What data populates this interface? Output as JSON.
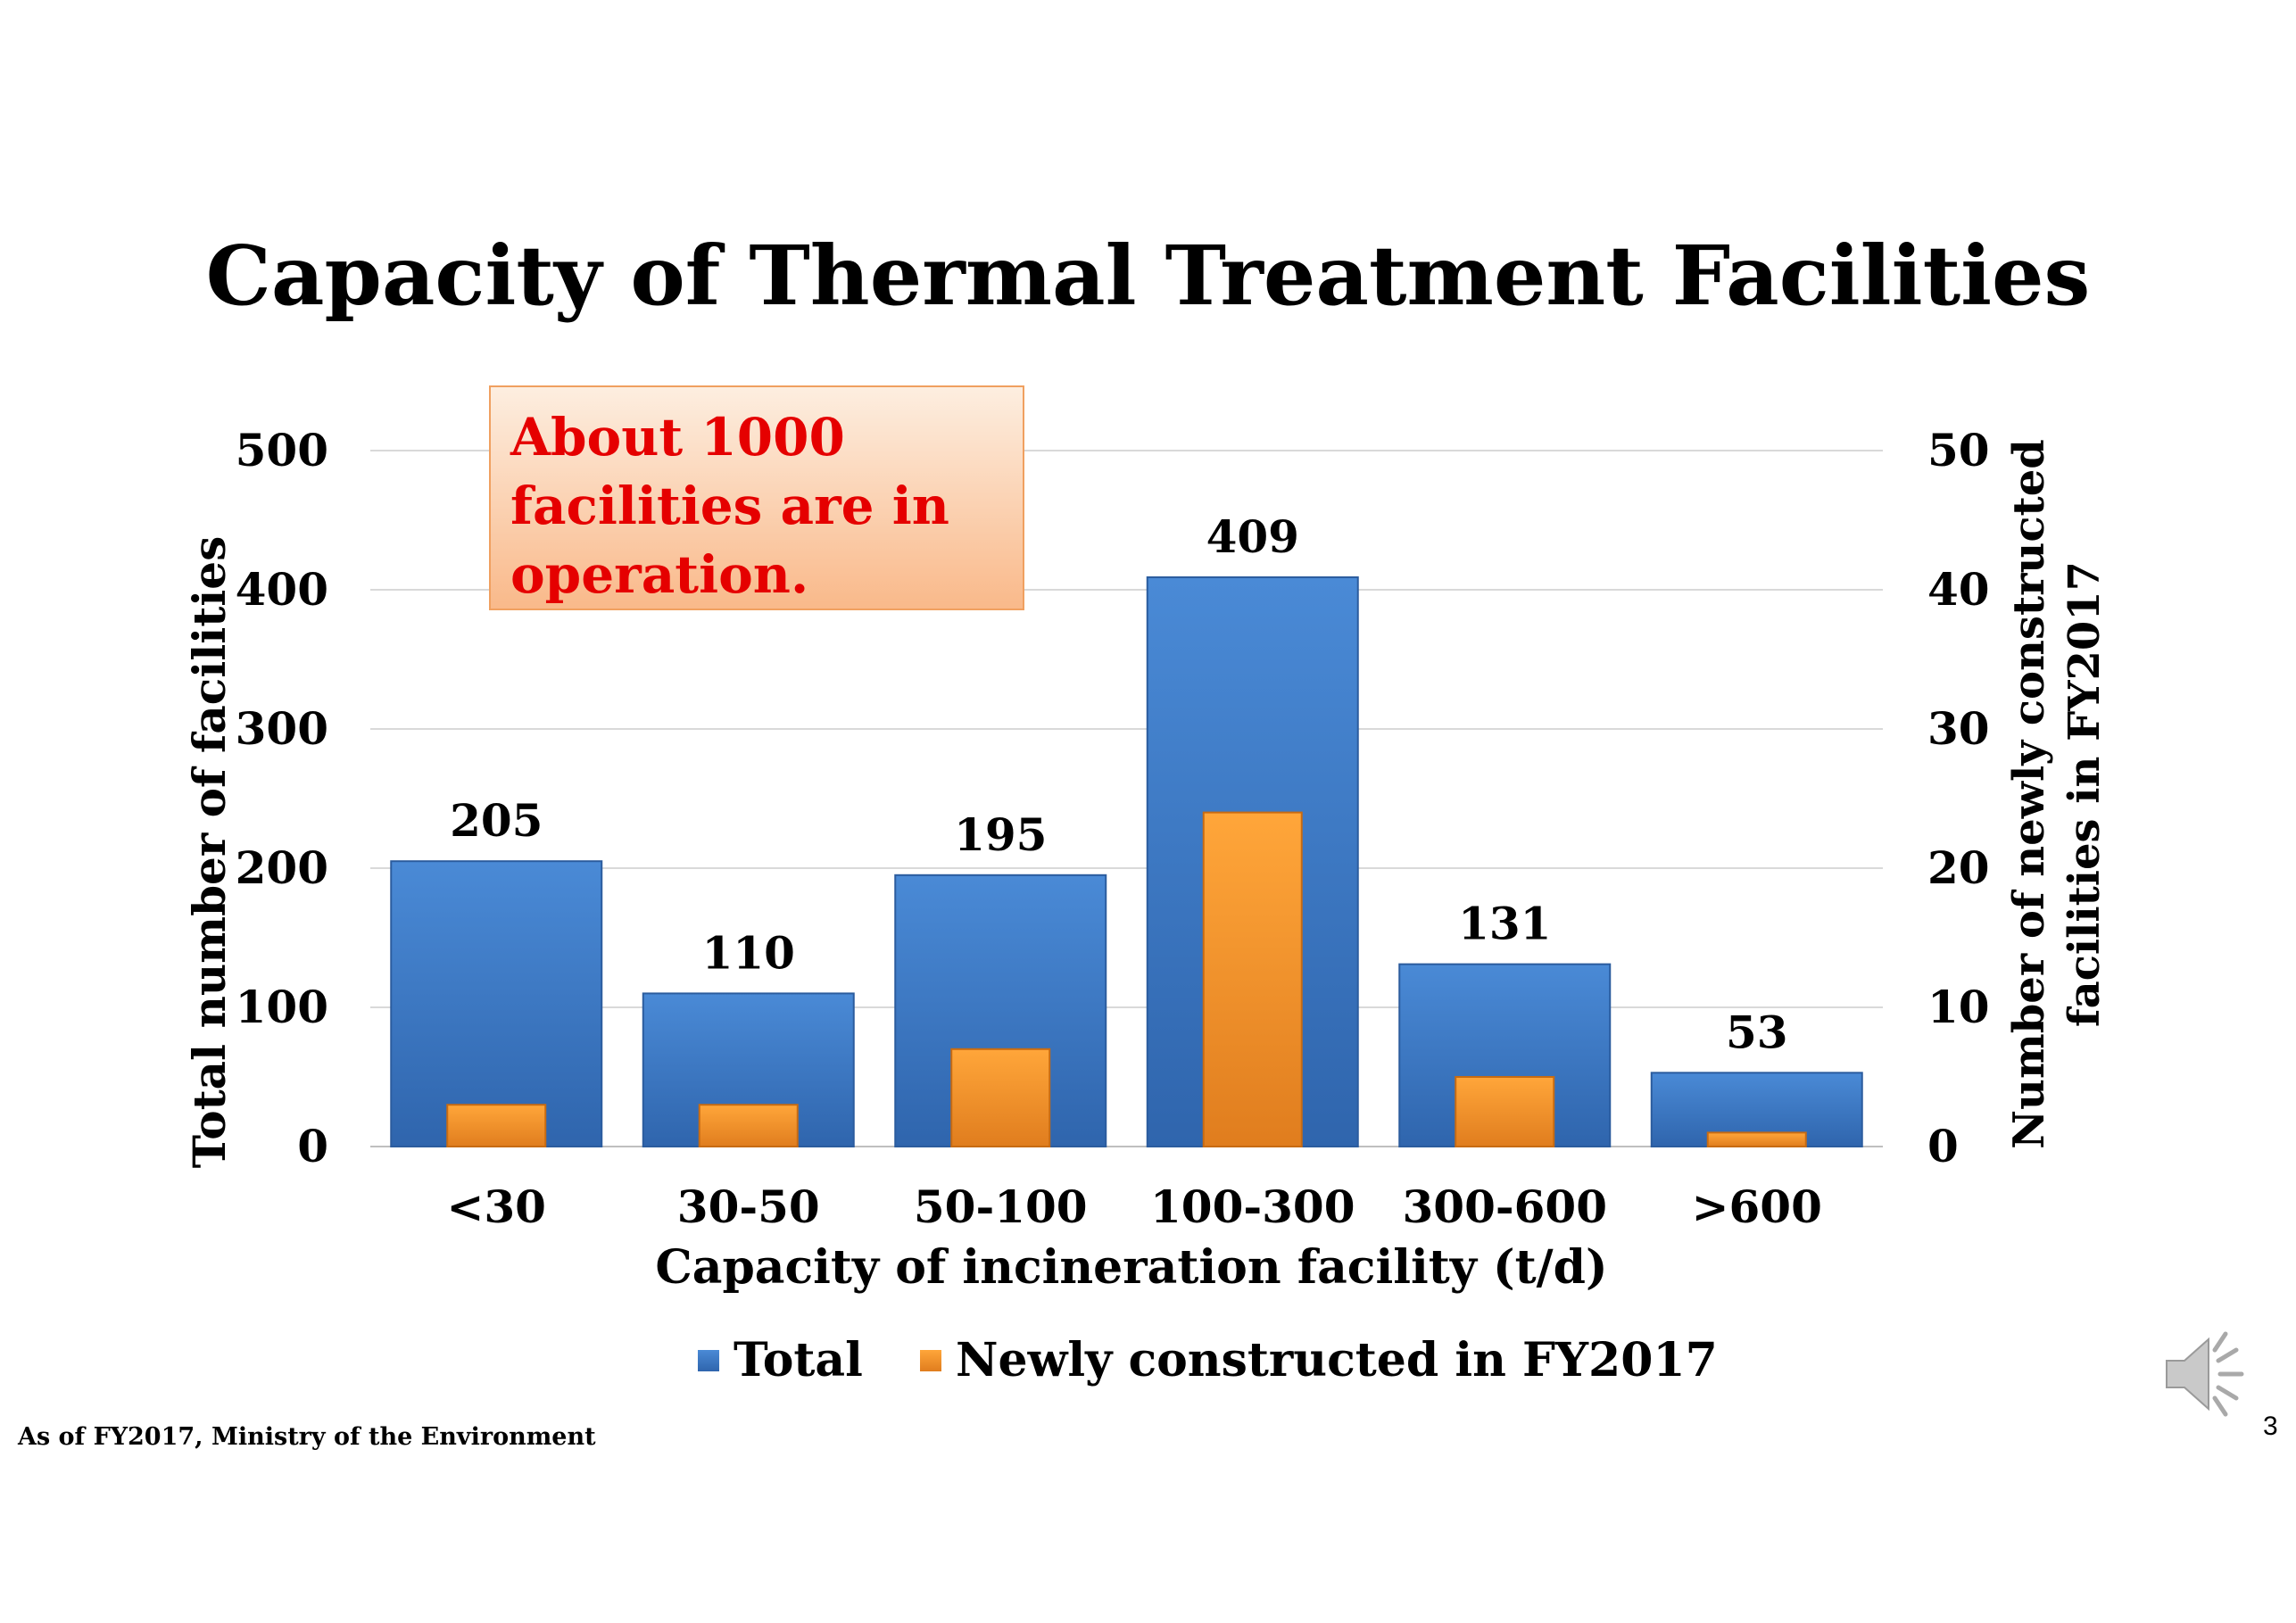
{
  "slide": {
    "title": "Capacity of Thermal Treatment Facilities",
    "callout_lines": [
      "About 1000",
      "facilities are in",
      "operation."
    ],
    "source_note": "As of FY2017, Ministry of the Environment",
    "page_number": "3",
    "speaker_icon": "speaker-icon",
    "colors": {
      "callout_text": "#e50000",
      "total_bar": "#3d7ac8",
      "new_bar": "#f39a2e"
    }
  },
  "chart_data": {
    "type": "bar",
    "title": "Capacity of Thermal Treatment Facilities",
    "xlabel": "Capacity of incineration facility (t/d)",
    "ylabel": "Total number of facilities",
    "y2label": [
      "Number of newly constructed",
      "facilities in FY2017"
    ],
    "categories": [
      "<30",
      "30-50",
      "50-100",
      "100-300",
      "300-600",
      ">600"
    ],
    "ylim": [
      0,
      500
    ],
    "y2lim": [
      0,
      50
    ],
    "yticks": [
      "0",
      "100",
      "200",
      "300",
      "400",
      "500"
    ],
    "y2ticks": [
      "0",
      "10",
      "20",
      "30",
      "40",
      "50"
    ],
    "grid": true,
    "legend_position": "bottom",
    "series": [
      {
        "name": "Total",
        "axis": "left",
        "color": "#3d7ac8",
        "values": [
          205,
          110,
          195,
          409,
          131,
          53
        ],
        "data_labels": [
          "205",
          "110",
          "195",
          "409",
          "131",
          "53"
        ]
      },
      {
        "name": "Newly constructed in FY2017",
        "axis": "right",
        "color": "#f39a2e",
        "values": [
          3,
          3,
          7,
          24,
          5,
          1
        ]
      }
    ]
  }
}
